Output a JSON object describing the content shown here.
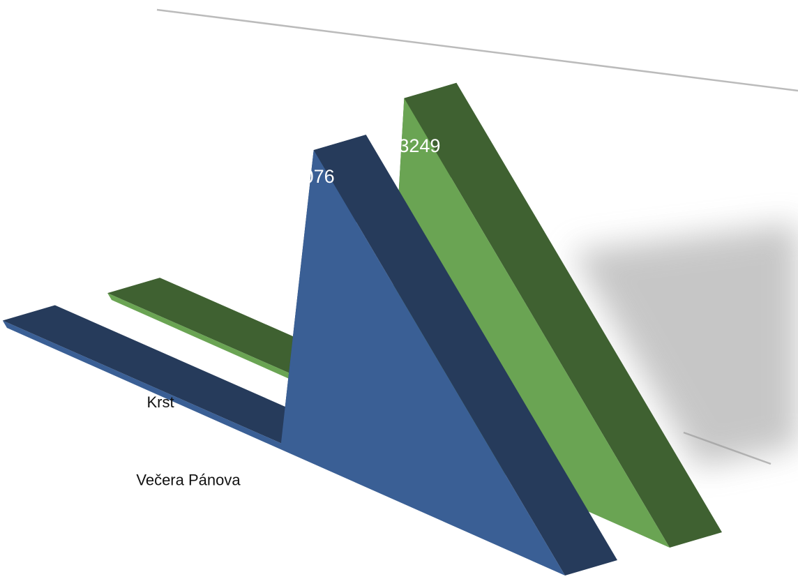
{
  "chart_data": {
    "type": "area3d",
    "categories": [
      "Krst",
      "Večera Pánova",
      null
    ],
    "series": [
      {
        "color": "#3a5f95",
        "side_color": "#263b5b",
        "values": [
          53,
          61,
          3076
        ]
      },
      {
        "color": "#6aa453",
        "side_color": "#3f6131",
        "values": [
          50,
          60,
          3249
        ]
      }
    ],
    "ylim": [
      0,
      3500
    ]
  }
}
